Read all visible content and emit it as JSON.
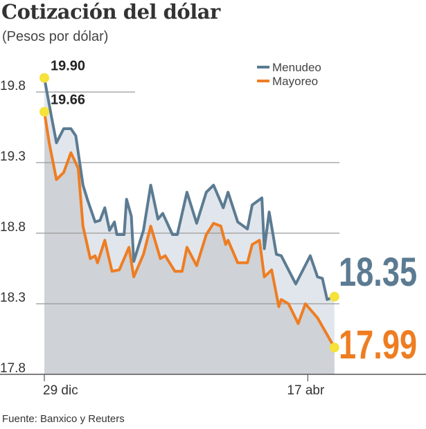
{
  "title": "Cotización del dólar",
  "subtitle": "(Pesos por dólar)",
  "source": "Fuente: Banxico y Reuters",
  "chart_data": {
    "type": "line",
    "title": "Cotización del dólar",
    "ylabel": "Pesos por dólar",
    "xlabel": "",
    "x_units": "days since 29 dic",
    "ylim": [
      17.8,
      19.95
    ],
    "yticks": [
      "19.8",
      "19.3",
      "18.8",
      "18.3",
      "17.8"
    ],
    "ytick_values": [
      19.8,
      19.3,
      18.8,
      18.3,
      17.8
    ],
    "xticks": [
      {
        "label": "29 dic",
        "x": 0
      },
      {
        "label": "17 abr",
        "x": 109
      }
    ],
    "legend": {
      "placement": "top-right",
      "entries": [
        "Menudeo",
        "Mayoreo"
      ]
    },
    "grid": true,
    "series": [
      {
        "name": "Menudeo",
        "color": "#5b7b92",
        "x": [
          0,
          3,
          5,
          8,
          11,
          13,
          16,
          18,
          21,
          23,
          25,
          27,
          29,
          30,
          33,
          34,
          36,
          37,
          41,
          44,
          47,
          49,
          53,
          55,
          59,
          63,
          67,
          70,
          74,
          76,
          80,
          84,
          86,
          90,
          91,
          93,
          96,
          98,
          104,
          110,
          113,
          115,
          117,
          120
        ],
        "values": [
          19.9,
          19.62,
          19.44,
          19.54,
          19.54,
          19.49,
          19.14,
          19.03,
          18.88,
          18.89,
          18.98,
          18.82,
          18.88,
          18.79,
          18.79,
          19.04,
          18.92,
          18.6,
          18.82,
          19.14,
          18.9,
          18.94,
          18.79,
          18.79,
          19.09,
          18.87,
          19.09,
          19.14,
          18.98,
          19.09,
          18.88,
          18.83,
          19.0,
          19.05,
          18.69,
          18.95,
          18.65,
          18.64,
          18.44,
          18.64,
          18.49,
          18.48,
          18.33,
          18.35
        ]
      },
      {
        "name": "Mayoreo",
        "color": "#ee7d22",
        "x": [
          0,
          2,
          5,
          8,
          11,
          14,
          16,
          19,
          21,
          22,
          25,
          28,
          31,
          35,
          37,
          41,
          44,
          48,
          50,
          54,
          57,
          59,
          63,
          67,
          70,
          73,
          75,
          76,
          80,
          84,
          86,
          89,
          91,
          94,
          97,
          98,
          101,
          105,
          108,
          113,
          120
        ],
        "values": [
          19.66,
          19.44,
          19.18,
          19.23,
          19.37,
          19.26,
          18.85,
          18.62,
          18.64,
          18.59,
          18.75,
          18.53,
          18.54,
          18.7,
          18.49,
          18.65,
          18.85,
          18.62,
          18.64,
          18.53,
          18.53,
          18.7,
          18.57,
          18.79,
          18.87,
          18.85,
          18.72,
          18.75,
          18.59,
          18.59,
          18.72,
          18.75,
          18.49,
          18.54,
          18.28,
          18.33,
          18.3,
          18.16,
          18.3,
          18.2,
          17.99
        ]
      }
    ],
    "annotations": [
      {
        "series": "Menudeo",
        "point": "start",
        "label": "19.90"
      },
      {
        "series": "Mayoreo",
        "point": "start",
        "label": "19.66"
      },
      {
        "series": "Menudeo",
        "point": "end",
        "label": "18.35"
      },
      {
        "series": "Mayoreo",
        "point": "end",
        "label": "17.99"
      }
    ],
    "marker_color": "#f5e23a"
  }
}
